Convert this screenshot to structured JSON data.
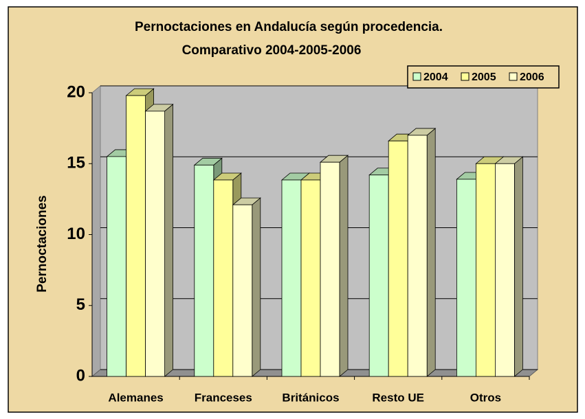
{
  "chart_data": {
    "type": "bar3d",
    "title": [
      "Pernoctaciones en Andalucía según procedencia.",
      "Comparativo 2004-2005-2006"
    ],
    "y_label": "Pernoctaciones",
    "categories": [
      "Alemanes",
      "Franceses",
      "Británicos",
      "Resto UE",
      "Otros"
    ],
    "series": [
      {
        "name": "2004",
        "color": "#ccffcc",
        "values": [
          15.5,
          14.9,
          13.85,
          14.2,
          13.9
        ]
      },
      {
        "name": "2005",
        "color": "#ffff99",
        "values": [
          19.8,
          13.85,
          13.85,
          16.6,
          15.0
        ]
      },
      {
        "name": "2006",
        "color": "#ffffcc",
        "values": [
          18.7,
          12.1,
          15.1,
          17.0,
          15.0
        ]
      }
    ],
    "ylim": [
      0,
      20
    ],
    "yticks": [
      0,
      5,
      10,
      15,
      20
    ],
    "grid": true,
    "legend": "top-right"
  }
}
